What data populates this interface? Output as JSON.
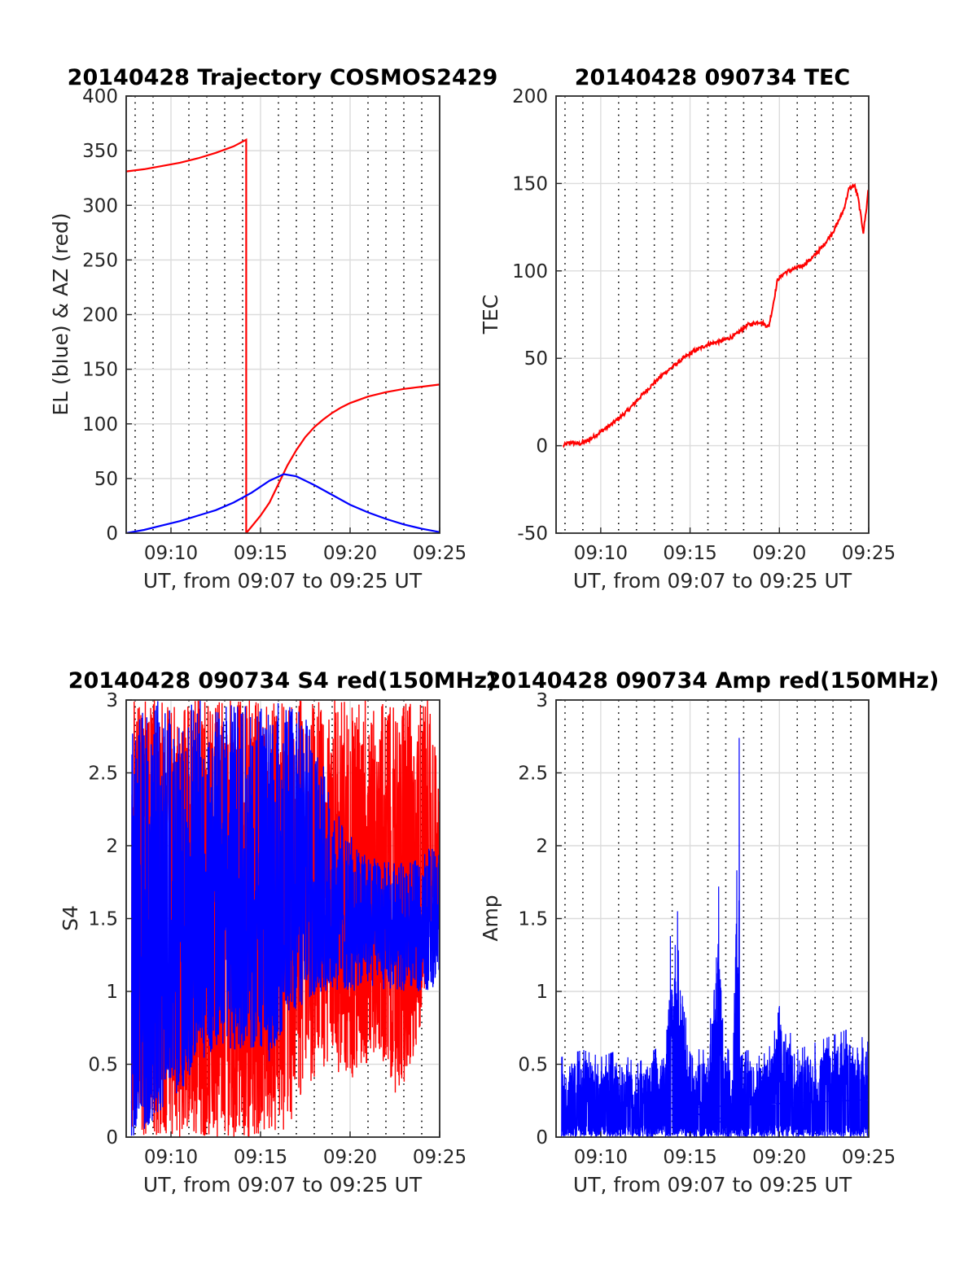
{
  "chart_data": [
    {
      "type": "line",
      "title": "20140428 Trajectory COSMOS2429",
      "xlabel": "UT, from 09:07 to 09:25 UT",
      "ylabel": "EL (blue) & AZ (red)",
      "xlim": [
        7.5,
        25
      ],
      "ylim": [
        0,
        400
      ],
      "xticks": [
        10,
        15,
        20,
        25
      ],
      "xtick_labels": [
        "09:10",
        "09:15",
        "09:20",
        "09:25"
      ],
      "yticks": [
        0,
        50,
        100,
        150,
        200,
        250,
        300,
        350,
        400
      ],
      "ytick_labels": [
        "0",
        "50",
        "100",
        "150",
        "200",
        "250",
        "300",
        "350",
        "400"
      ],
      "grid": true,
      "series": [
        {
          "color": "#ff0000",
          "x": [
            7.5,
            8.5,
            9.5,
            10.5,
            11.5,
            12.5,
            13.5,
            14.2,
            14.2,
            14.5,
            15,
            15.5,
            16,
            16.5,
            17,
            17.5,
            18,
            18.5,
            19,
            19.5,
            20,
            21,
            22,
            23,
            24,
            25
          ],
          "y": [
            331,
            333,
            336,
            339,
            343,
            348,
            354,
            360,
            0,
            6,
            16,
            28,
            45,
            62,
            76,
            88,
            97,
            104,
            110,
            115,
            119,
            125,
            129,
            132,
            134,
            136
          ]
        },
        {
          "color": "#0000ff",
          "x": [
            7.5,
            8.5,
            9.5,
            10.5,
            11.5,
            12.5,
            13.5,
            14.5,
            15.5,
            16.3,
            17,
            18,
            19,
            20,
            21,
            22,
            23,
            24,
            25
          ],
          "y": [
            0,
            3,
            7,
            11,
            16,
            21,
            28,
            37,
            48,
            54,
            52,
            44,
            35,
            26,
            19,
            13,
            8,
            4,
            1
          ]
        }
      ]
    },
    {
      "type": "line",
      "title": "20140428 090734 TEC",
      "xlabel": "UT, from 09:07 to 09:25 UT",
      "ylabel": "TEC",
      "xlim": [
        7.5,
        25
      ],
      "ylim": [
        -50,
        200
      ],
      "xticks": [
        10,
        15,
        20,
        25
      ],
      "xtick_labels": [
        "09:10",
        "09:15",
        "09:20",
        "09:25"
      ],
      "yticks": [
        -50,
        0,
        50,
        100,
        150,
        200
      ],
      "ytick_labels": [
        "-50",
        "0",
        "50",
        "100",
        "150",
        "200"
      ],
      "grid": true,
      "series": [
        {
          "color": "#ff0000",
          "x": [
            7.9,
            8.3,
            8.8,
            9.3,
            10,
            10.7,
            11.5,
            12.5,
            13.5,
            14.5,
            15.2,
            16,
            16.8,
            17.5,
            18.2,
            18.9,
            19.4,
            19.6,
            19.9,
            20.3,
            20.8,
            21.3,
            21.9,
            22.5,
            23.1,
            23.6,
            23.9,
            24.2,
            24.4,
            24.7,
            24.9,
            25
          ],
          "y": [
            0,
            2,
            1,
            3,
            8,
            13,
            20,
            31,
            41,
            49,
            54,
            58,
            60,
            63,
            69,
            71,
            68,
            78,
            95,
            99,
            101,
            103,
            108,
            115,
            124,
            135,
            147,
            149,
            142,
            122,
            138,
            150
          ]
        }
      ]
    },
    {
      "type": "line",
      "title": "20140428 090734 S4 red(150MHz)",
      "xlabel": "UT, from 09:07 to 09:25 UT",
      "ylabel": "S4",
      "xlim": [
        7.5,
        25
      ],
      "ylim": [
        0,
        3
      ],
      "xticks": [
        10,
        15,
        20,
        25
      ],
      "xtick_labels": [
        "09:10",
        "09:15",
        "09:20",
        "09:25"
      ],
      "yticks": [
        0,
        0.5,
        1,
        1.5,
        2,
        2.5,
        3
      ],
      "ytick_labels": [
        "0",
        "0.5",
        "1",
        "1.5",
        "2",
        "2.5",
        "3"
      ],
      "grid": true,
      "series": [
        {
          "color": "#ff0000",
          "x": [
            7.8,
            8.5,
            9.5,
            10.5,
            11.5,
            12.5,
            13.5,
            14.5,
            15.5,
            16.5,
            17.5,
            18.5,
            19.5,
            20.5,
            21.5,
            22.5,
            23.5,
            24.5,
            25
          ],
          "y_low": [
            0,
            0,
            0,
            0,
            0,
            0,
            0,
            0,
            0,
            0,
            0.3,
            0.4,
            0.4,
            0.4,
            0.6,
            0.3,
            0.4,
            1.2,
            1.4
          ],
          "y_high": [
            3,
            3,
            3,
            3,
            3,
            3,
            3,
            3,
            3,
            3,
            3,
            3,
            3,
            3,
            3,
            3,
            3,
            3,
            2.5
          ]
        },
        {
          "color": "#0000ff",
          "x": [
            7.8,
            8.5,
            9.5,
            10.5,
            11.5,
            12.5,
            13.5,
            14.5,
            15.5,
            16.5,
            17.5,
            18.5,
            19.5,
            20.5,
            21.5,
            22.5,
            23.5,
            24.5,
            25
          ],
          "y_low": [
            0,
            0,
            0.2,
            0.3,
            0.5,
            0.6,
            0.6,
            0.6,
            0.5,
            0.8,
            0.9,
            1.0,
            1.0,
            1.0,
            1.0,
            1.0,
            1.0,
            1.0,
            1.1
          ],
          "y_high": [
            3,
            3,
            3,
            3,
            3,
            3,
            3,
            3,
            3,
            3,
            2.9,
            2.6,
            2.2,
            2.0,
            1.9,
            1.9,
            1.9,
            2.0,
            2.0
          ]
        }
      ]
    },
    {
      "type": "line",
      "title": "20140428 090734 Amp red(150MHz)",
      "xlabel": "UT, from 09:07 to 09:25 UT",
      "ylabel": "Amp",
      "xlim": [
        7.5,
        25
      ],
      "ylim": [
        0,
        3
      ],
      "xticks": [
        10,
        15,
        20,
        25
      ],
      "xtick_labels": [
        "09:10",
        "09:15",
        "09:20",
        "09:25"
      ],
      "yticks": [
        0,
        0.5,
        1,
        1.5,
        2,
        2.5,
        3
      ],
      "ytick_labels": [
        "0",
        "0.5",
        "1",
        "1.5",
        "2",
        "2.5",
        "3"
      ],
      "grid": true,
      "series": [
        {
          "color": "#0000ff",
          "x": [
            7.8,
            9,
            10,
            11,
            12,
            13,
            13.6,
            13.9,
            14.1,
            14.3,
            14.6,
            15.2,
            16,
            16.4,
            16.6,
            16.9,
            17.4,
            17.7,
            17.8,
            18.2,
            19,
            19.6,
            20,
            21,
            22,
            23,
            24,
            25
          ],
          "y_high": [
            0.55,
            0.6,
            0.55,
            0.6,
            0.5,
            0.6,
            0.65,
            1.3,
            1.2,
            1.55,
            0.9,
            0.6,
            0.6,
            1.2,
            1.72,
            0.65,
            0.55,
            2.74,
            0.55,
            0.6,
            0.55,
            0.65,
            0.9,
            0.6,
            0.65,
            0.7,
            0.75,
            0.65
          ]
        }
      ]
    }
  ]
}
